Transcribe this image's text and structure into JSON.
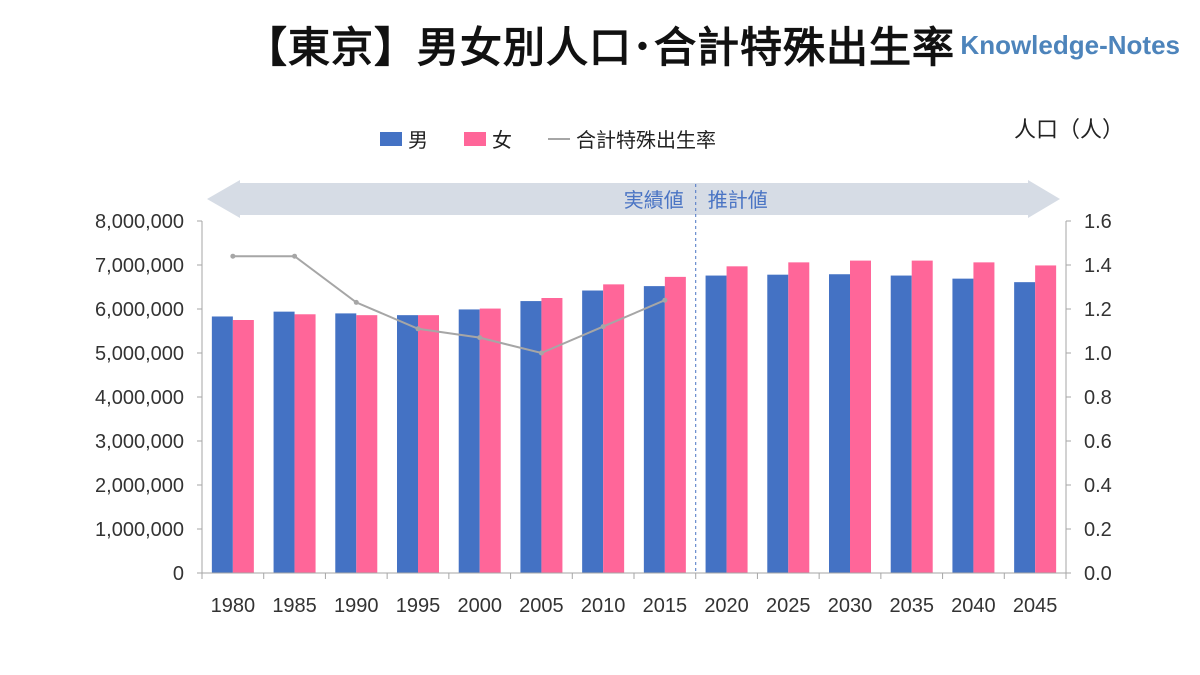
{
  "title": "【東京】男女別人口･合計特殊出生率",
  "watermark": "Knowledge-Notes",
  "unit_label": "人口（人）",
  "legend": {
    "male": "男",
    "female": "女",
    "tfr": "合計特殊出生率"
  },
  "band": {
    "actual": "実績値",
    "projected": "推計値"
  },
  "colors": {
    "male": "#4472c4",
    "female": "#ff6699",
    "tfr": "#a6a6a6",
    "band": "#d6dce5"
  },
  "chart_data": {
    "type": "bar",
    "categories": [
      "1980",
      "1985",
      "1990",
      "1995",
      "2000",
      "2005",
      "2010",
      "2015",
      "2020",
      "2025",
      "2030",
      "2035",
      "2040",
      "2045"
    ],
    "series": [
      {
        "name": "男",
        "values": [
          5830000,
          5940000,
          5900000,
          5860000,
          5990000,
          6180000,
          6420000,
          6520000,
          6760000,
          6780000,
          6790000,
          6760000,
          6690000,
          6610000
        ]
      },
      {
        "name": "女",
        "values": [
          5750000,
          5880000,
          5860000,
          5860000,
          6010000,
          6250000,
          6560000,
          6730000,
          6970000,
          7060000,
          7100000,
          7100000,
          7060000,
          6990000
        ]
      }
    ],
    "line_series": {
      "name": "合計特殊出生率",
      "axis": "right",
      "values": [
        1.44,
        1.44,
        1.23,
        1.11,
        1.07,
        1.0,
        1.12,
        1.24,
        null,
        null,
        null,
        null,
        null,
        null
      ]
    },
    "y_left": {
      "min": 0,
      "max": 8000000,
      "ticks": [
        "0",
        "1,000,000",
        "2,000,000",
        "3,000,000",
        "4,000,000",
        "5,000,000",
        "6,000,000",
        "7,000,000",
        "8,000,000"
      ]
    },
    "y_right": {
      "min": 0,
      "max": 1.6,
      "ticks": [
        "0.0",
        "0.2",
        "0.4",
        "0.6",
        "0.8",
        "1.0",
        "1.2",
        "1.4",
        "1.6"
      ]
    },
    "divider_after_index": 7
  }
}
